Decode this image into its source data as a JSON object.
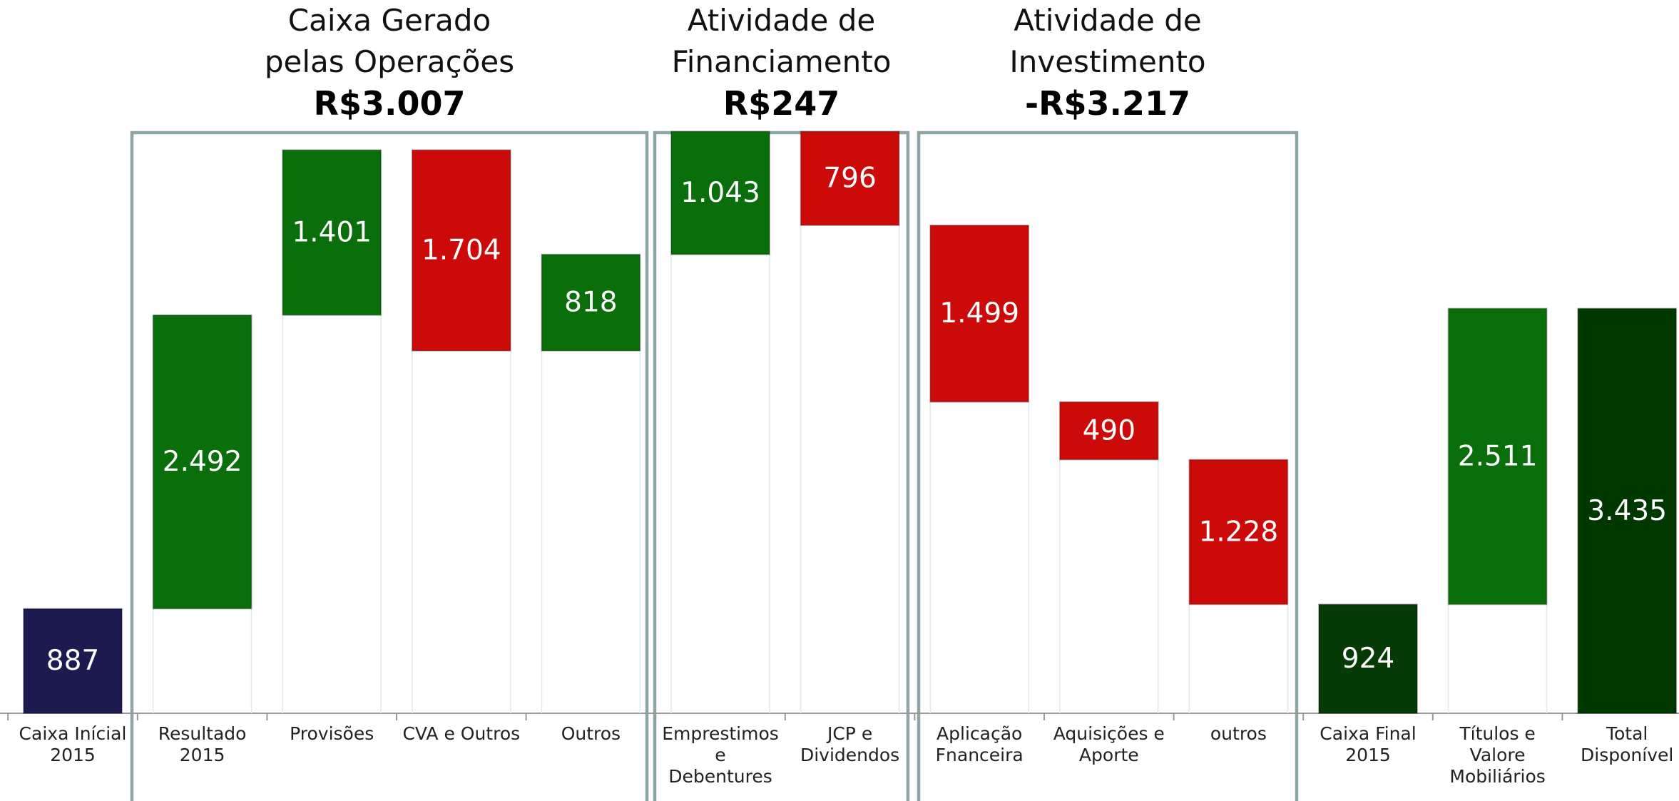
{
  "chart_data": {
    "type": "waterfall",
    "groups": [
      {
        "title": "Caixa Gerado\npelas Operações",
        "total": "R$3.007"
      },
      {
        "title": "Atividade de\nFinanciamento",
        "total": "R$247"
      },
      {
        "title": "Atividade de\nInvestimento",
        "total": "-R$3.217"
      }
    ],
    "categories": [
      "Caixa Inícial\n2015",
      "Resultado\n2015",
      "Provisões",
      "CVA e Outros",
      "Outros",
      "Emprestimos e\nDebentures",
      "JCP e\nDividendos",
      "Aplicação\nFnanceira",
      "Aquisições e\nAporte",
      "outros",
      "Caixa Final\n2015",
      "Títulos e\nValore\nMobiliários",
      "Total\nDisponível"
    ],
    "values": [
      887,
      2492,
      1401,
      -1704,
      818,
      1043,
      -796,
      -1499,
      -490,
      -1228,
      924,
      2511,
      3435
    ],
    "value_labels": [
      "887",
      "2.492",
      "1.401",
      "1.704",
      "818",
      "1.043",
      "796",
      "1.499",
      "490",
      "1.228",
      "924",
      "2.511",
      "3.435"
    ],
    "colors": [
      "#1c1a4e",
      "#0a6e0a",
      "#0a6e0a",
      "#cc0a0a",
      "#0a6e0a",
      "#0a6e0a",
      "#cc0a0a",
      "#cc0a0a",
      "#cc0a0a",
      "#cc0a0a",
      "#063a06",
      "#0a6e0a",
      "#003800"
    ],
    "ylim": [
      0,
      4800
    ]
  }
}
